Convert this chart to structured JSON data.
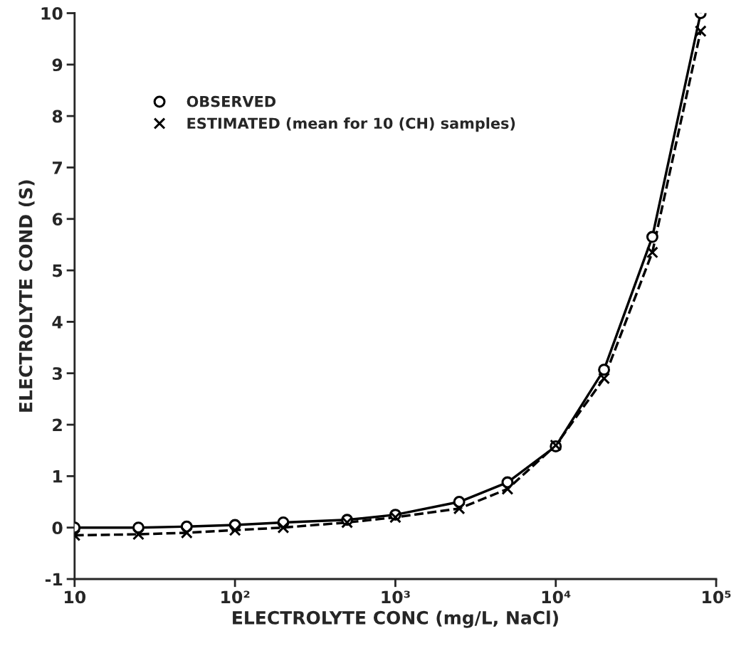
{
  "chart_data": {
    "type": "line",
    "xlabel": "ELECTROLYTE CONC (mg/L, NaCl)",
    "ylabel": "ELECTROLYTE COND (S)",
    "x": [
      10,
      25,
      50,
      100,
      200,
      500,
      1000,
      2500,
      5000,
      10000,
      20000,
      40000,
      80000
    ],
    "series": [
      {
        "name": "OBSERVED",
        "color": "#000000",
        "marker": "circle",
        "line_style": "solid",
        "values": [
          0.0,
          0.0,
          0.02,
          0.05,
          0.1,
          0.15,
          0.25,
          0.5,
          0.88,
          1.58,
          3.07,
          5.65,
          10.0
        ]
      },
      {
        "name": "ESTIMATED (mean for 10 (CH) samples)",
        "color": "#000000",
        "marker": "cross",
        "line_style": "dashed",
        "values": [
          -0.15,
          -0.13,
          -0.1,
          -0.05,
          0.0,
          0.1,
          0.2,
          0.37,
          0.75,
          1.6,
          2.9,
          5.35,
          9.65
        ]
      }
    ],
    "log": "x",
    "xlim": [
      10,
      100000
    ],
    "ylim": [
      -1,
      10
    ],
    "xticks": [
      10,
      {
        "value": 100,
        "label": "10²"
      },
      {
        "value": 1000,
        "label": "10³"
      },
      {
        "value": 10000,
        "label": "10⁴"
      },
      {
        "value": 100000,
        "label": "10⁵"
      }
    ],
    "yticks": [
      -1,
      0,
      1,
      2,
      3,
      4,
      5,
      6,
      7,
      8,
      9,
      10
    ],
    "grid": false,
    "legend": "top left"
  }
}
